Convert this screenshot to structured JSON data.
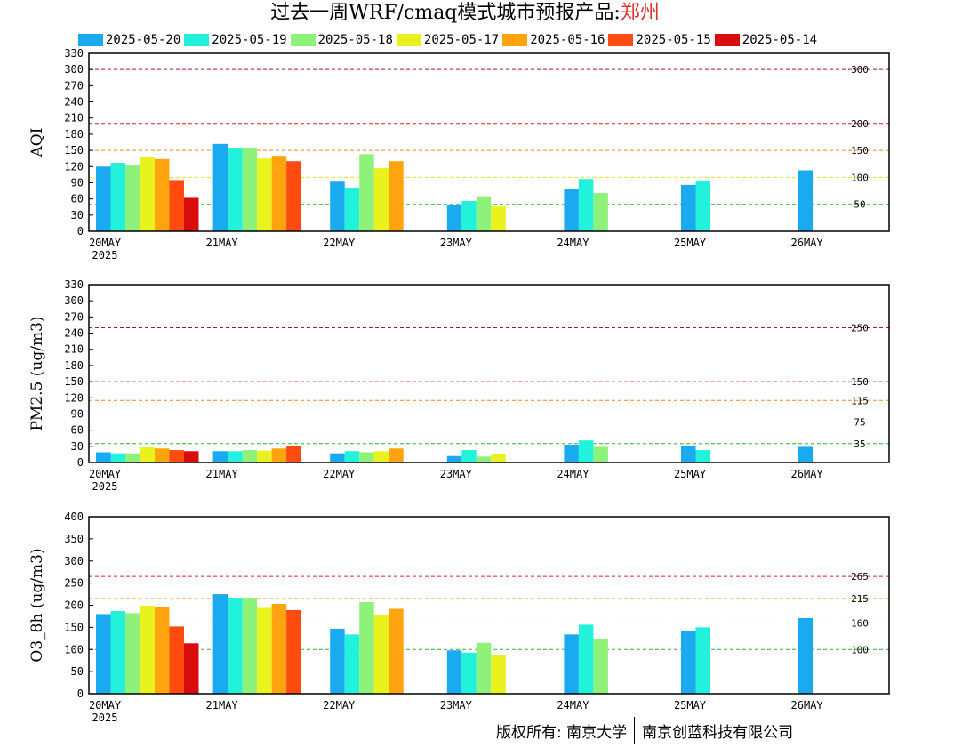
{
  "title": {
    "prefix": "过去一周WRF/cmaq模式城市预报产品:",
    "city": "郑州"
  },
  "legend": [
    {
      "label": "2025-05-20",
      "color": "#1aaaf0"
    },
    {
      "label": "2025-05-19",
      "color": "#22f2dc"
    },
    {
      "label": "2025-05-18",
      "color": "#8ef27a"
    },
    {
      "label": "2025-05-17",
      "color": "#eaf21e"
    },
    {
      "label": "2025-05-16",
      "color": "#ffa40e"
    },
    {
      "label": "2025-05-15",
      "color": "#ff4a10"
    },
    {
      "label": "2025-05-14",
      "color": "#d80c0c"
    }
  ],
  "copyright": {
    "left": "版权所有: 南京大学",
    "right": "南京创蓝科技有限公司"
  },
  "chart_data": [
    {
      "type": "bar",
      "ylabel": "AQI",
      "ylim": [
        0,
        330
      ],
      "yticks": [
        0,
        30,
        60,
        90,
        120,
        150,
        180,
        210,
        240,
        270,
        300,
        330
      ],
      "x_labels": [
        "20MAY",
        "21MAY",
        "22MAY",
        "23MAY",
        "24MAY",
        "25MAY",
        "26MAY"
      ],
      "year_label": "2025",
      "reference_lines": [
        {
          "value": 50,
          "label": "50",
          "color": "#2ab52a"
        },
        {
          "value": 100,
          "label": "100",
          "color": "#e8e020"
        },
        {
          "value": 150,
          "label": "150",
          "color": "#f08c1e"
        },
        {
          "value": 200,
          "label": "200",
          "color": "#d82020"
        },
        {
          "value": 300,
          "label": "300",
          "color": "#a01060"
        }
      ],
      "groups": [
        [
          120,
          127,
          122,
          137,
          134,
          95,
          62
        ],
        [
          162,
          155,
          155,
          135,
          140,
          130
        ],
        [
          92,
          81,
          143,
          117,
          130
        ],
        [
          49,
          56,
          65,
          46
        ],
        [
          79,
          97,
          71
        ],
        [
          86,
          93
        ],
        [
          113
        ]
      ]
    },
    {
      "type": "bar",
      "ylabel": "PM2.5 (ug/m3)",
      "ylim": [
        0,
        330
      ],
      "yticks": [
        0,
        30,
        60,
        90,
        120,
        150,
        180,
        210,
        240,
        270,
        300,
        330
      ],
      "x_labels": [
        "20MAY",
        "21MAY",
        "22MAY",
        "23MAY",
        "24MAY",
        "25MAY",
        "26MAY"
      ],
      "year_label": "2025",
      "reference_lines": [
        {
          "value": 35,
          "label": "35",
          "color": "#2ab52a"
        },
        {
          "value": 75,
          "label": "75",
          "color": "#e8e020"
        },
        {
          "value": 115,
          "label": "115",
          "color": "#f08c1e"
        },
        {
          "value": 150,
          "label": "150",
          "color": "#d82020"
        },
        {
          "value": 250,
          "label": "250",
          "color": "#a01060"
        }
      ],
      "groups": [
        [
          19,
          17,
          17,
          28,
          26,
          23,
          21
        ],
        [
          21,
          21,
          23,
          22,
          26,
          30
        ],
        [
          17,
          21,
          19,
          21,
          26
        ],
        [
          12,
          23,
          11,
          15
        ],
        [
          33,
          41,
          29
        ],
        [
          31,
          23
        ],
        [
          29
        ]
      ]
    },
    {
      "type": "bar",
      "ylabel": "O3_8h (ug/m3)",
      "ylim": [
        0,
        400
      ],
      "yticks": [
        0,
        50,
        100,
        150,
        200,
        250,
        300,
        350,
        400
      ],
      "x_labels": [
        "20MAY",
        "21MAY",
        "22MAY",
        "23MAY",
        "24MAY",
        "25MAY",
        "26MAY"
      ],
      "year_label": "2025",
      "reference_lines": [
        {
          "value": 100,
          "label": "100",
          "color": "#2ab52a"
        },
        {
          "value": 160,
          "label": "160",
          "color": "#e8e020"
        },
        {
          "value": 215,
          "label": "215",
          "color": "#f08c1e"
        },
        {
          "value": 265,
          "label": "265",
          "color": "#d82020"
        }
      ],
      "groups": [
        [
          180,
          187,
          182,
          199,
          195,
          152,
          114
        ],
        [
          225,
          217,
          217,
          194,
          203,
          189
        ],
        [
          147,
          134,
          207,
          178,
          192
        ],
        [
          98,
          93,
          115,
          88
        ],
        [
          134,
          156,
          123
        ],
        [
          141,
          150
        ],
        [
          171
        ]
      ]
    }
  ]
}
